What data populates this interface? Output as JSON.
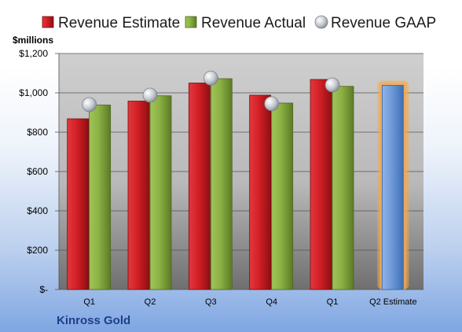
{
  "chart_data": {
    "type": "bar",
    "company": "Kinross Gold",
    "ylabel_unit": "$millions",
    "categories": [
      "Q1",
      "Q2",
      "Q3",
      "Q4",
      "Q1",
      "Q2 Estimate"
    ],
    "ylim": [
      0,
      1200
    ],
    "yticks": [
      0,
      200,
      400,
      600,
      800,
      1000,
      1200
    ],
    "ytick_labels": [
      "$-",
      "$200",
      "$400",
      "$600",
      "$800",
      "$1,000",
      "$1,200"
    ],
    "legend_position": "top",
    "grid": true,
    "series": [
      {
        "name": "Revenue Estimate",
        "kind": "bar",
        "color": "#c0161b",
        "values": [
          868,
          958,
          1050,
          988,
          1068,
          null
        ]
      },
      {
        "name": "Revenue Actual",
        "kind": "bar",
        "color": "#7fa33a",
        "values": [
          938,
          985,
          1072,
          948,
          1033,
          null
        ]
      },
      {
        "name": "Revenue GAAP",
        "kind": "marker",
        "color": "#b8bcc4",
        "values": [
          940,
          988,
          1075,
          945,
          1040,
          null
        ]
      },
      {
        "name": "Q2 Estimate",
        "kind": "bar",
        "color": "#5b8fd6",
        "highlight": "#f2a94f",
        "values": [
          null,
          null,
          null,
          null,
          null,
          1038
        ]
      }
    ]
  }
}
